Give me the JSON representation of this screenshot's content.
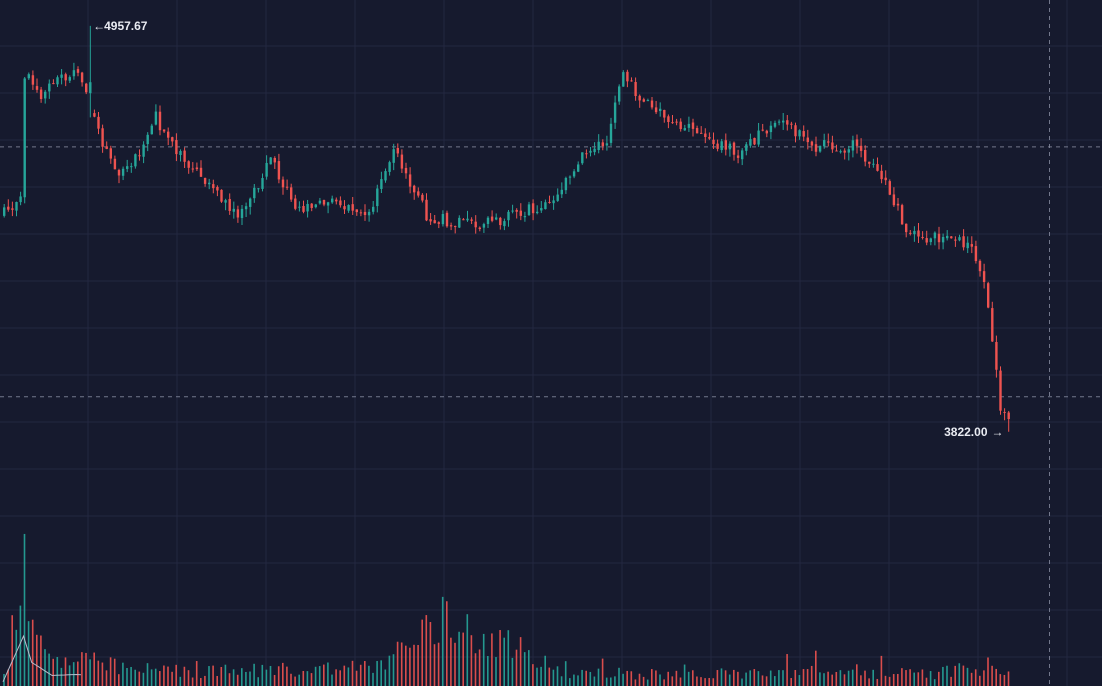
{
  "chart_data": {
    "type": "candlestick",
    "title": "",
    "xlabel": "",
    "ylabel": "",
    "ylim": [
      3715,
      5030
    ],
    "grid": true,
    "colors": {
      "background": "#161a2e",
      "grid": "#232840",
      "up": "#26a69a",
      "down": "#ef5350",
      "crosshair": "#8a8fa3",
      "high_line": "#5b7ea3",
      "label": "#e9ebf2"
    },
    "max_marker": {
      "value": 4957.67,
      "label": "4957.67",
      "arrow": "←"
    },
    "min_marker": {
      "value": 3822.0,
      "label": "3822.00",
      "arrow": "→"
    },
    "reference_lines": [
      {
        "label": "dashed-level-upper",
        "value": 4619
      },
      {
        "label": "dashed-level-lower",
        "value": 3920
      }
    ],
    "anchors": [
      [
        0,
        4430
      ],
      [
        5,
        4480
      ],
      [
        6,
        4820
      ],
      [
        10,
        4770
      ],
      [
        18,
        4840
      ],
      [
        22,
        4730
      ],
      [
        28,
        4540
      ],
      [
        32,
        4560
      ],
      [
        38,
        4700
      ],
      [
        44,
        4590
      ],
      [
        52,
        4500
      ],
      [
        58,
        4420
      ],
      [
        66,
        4580
      ],
      [
        72,
        4450
      ],
      [
        82,
        4460
      ],
      [
        90,
        4420
      ],
      [
        96,
        4620
      ],
      [
        104,
        4430
      ],
      [
        110,
        4410
      ],
      [
        118,
        4400
      ],
      [
        126,
        4430
      ],
      [
        134,
        4460
      ],
      [
        142,
        4600
      ],
      [
        148,
        4640
      ],
      [
        152,
        4830
      ],
      [
        156,
        4745
      ],
      [
        166,
        4680
      ],
      [
        180,
        4600
      ],
      [
        190,
        4700
      ],
      [
        198,
        4620
      ],
      [
        208,
        4620
      ],
      [
        214,
        4560
      ],
      [
        222,
        4370
      ],
      [
        230,
        4360
      ],
      [
        236,
        4350
      ],
      [
        240,
        4250
      ],
      [
        244,
        3890
      ],
      [
        246,
        3860
      ]
    ],
    "volume_shape": [
      [
        0,
        0.08
      ],
      [
        5,
        0.95
      ],
      [
        7,
        0.45
      ],
      [
        12,
        0.2
      ],
      [
        18,
        0.22
      ],
      [
        30,
        0.14
      ],
      [
        50,
        0.12
      ],
      [
        90,
        0.16
      ],
      [
        108,
        0.55
      ],
      [
        140,
        0.1
      ],
      [
        170,
        0.1
      ],
      [
        195,
        0.12
      ],
      [
        225,
        0.1
      ],
      [
        243,
        0.18
      ],
      [
        245,
        0.16
      ]
    ],
    "candle_count": 246
  }
}
